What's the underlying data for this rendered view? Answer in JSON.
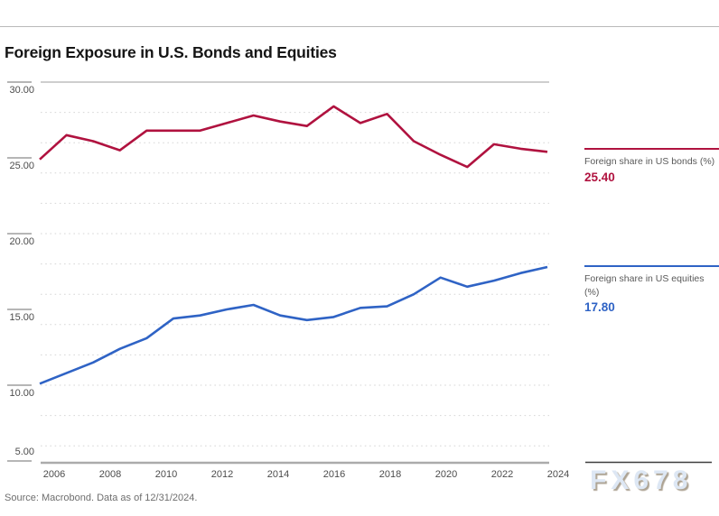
{
  "title": "Foreign Exposure in U.S. Bonds and Equities",
  "source": "Source: Macrobond. Data as of 12/31/2024.",
  "watermark": "FX678",
  "colors": {
    "bonds": "#b0123f",
    "equities": "#2f63c5",
    "grid_dotted": "#d6d6d6",
    "grid_top": "#9c9c9c",
    "axis_bottom": "#ababab",
    "tick": "#8a8a8a",
    "watermark_rule": "#3f3f3f"
  },
  "legend": {
    "bonds": {
      "lines": [
        "Foreign share in US bonds (%)"
      ],
      "value": "25.40"
    },
    "equities": {
      "lines": [
        "Foreign share in US equities",
        "(%)"
      ],
      "value": "17.80"
    }
  },
  "chart_data": {
    "type": "line",
    "title": "Foreign Exposure in U.S. Bonds and Equities",
    "x": [
      2005,
      2006,
      2007,
      2008,
      2009,
      2010,
      2011,
      2012,
      2013,
      2014,
      2015,
      2016,
      2017,
      2018,
      2019,
      2020,
      2021,
      2022,
      2023,
      2024
    ],
    "series": [
      {
        "name": "Foreign share in US bonds (%)",
        "color": "#b0123f",
        "last_value_label": "25.40",
        "values": [
          24.9,
          26.5,
          26.1,
          25.5,
          26.8,
          26.8,
          26.8,
          27.3,
          27.8,
          27.4,
          27.1,
          28.4,
          27.3,
          27.9,
          26.1,
          25.2,
          24.4,
          25.9,
          25.6,
          25.4
        ]
      },
      {
        "name": "Foreign share in US equities (%)",
        "color": "#2f63c5",
        "last_value_label": "17.80",
        "values": [
          10.1,
          10.8,
          11.5,
          12.4,
          13.1,
          14.4,
          14.6,
          15.0,
          15.3,
          14.6,
          14.3,
          14.5,
          15.1,
          15.2,
          16.0,
          17.1,
          16.5,
          16.9,
          17.4,
          17.8
        ]
      }
    ],
    "ylim": [
      4.9,
      30.0
    ],
    "yticks": [
      30,
      25,
      20,
      15,
      10,
      5
    ],
    "ytick_labels": [
      "30.00",
      "25.00",
      "20.00",
      "15.00",
      "10.00",
      "5.00"
    ],
    "gridlines_even_values": [
      28,
      26,
      24,
      22,
      20,
      18,
      16,
      14,
      12,
      10,
      8,
      6
    ],
    "xtick_labels": [
      "2006",
      "2008",
      "2010",
      "2012",
      "2014",
      "2016",
      "2018",
      "2020",
      "2022",
      "2024"
    ],
    "grid": "horizontal-dotted",
    "legend_position": "right"
  }
}
